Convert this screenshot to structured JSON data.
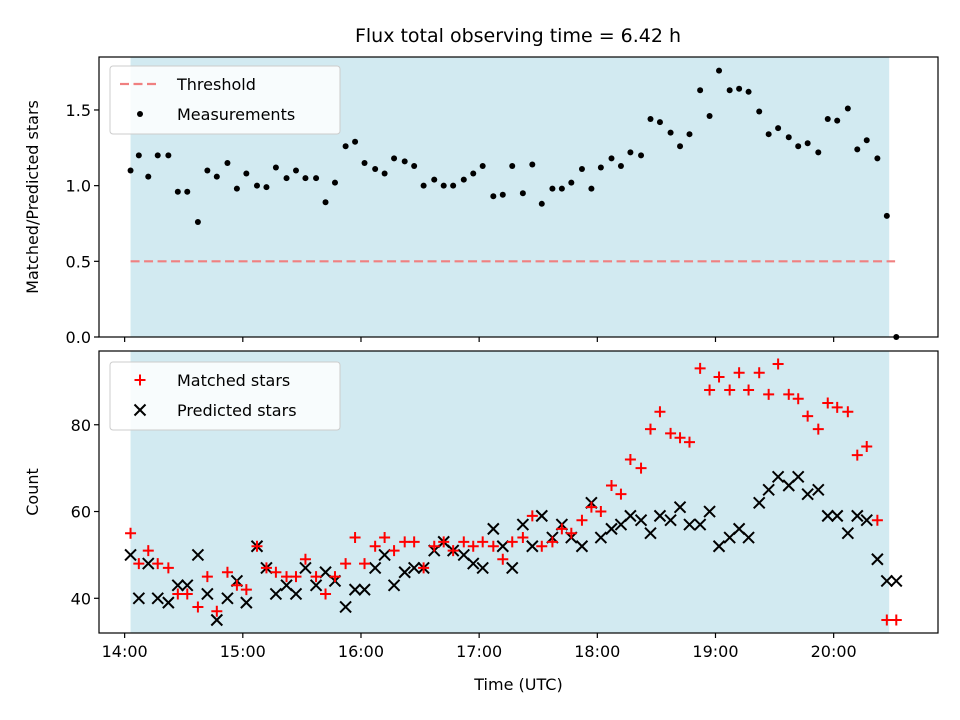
{
  "title": "Flux total observing time = 6.42 h",
  "chart_data": [
    {
      "type": "scatter",
      "ylabel": "Matched/Predicted stars",
      "xlim": [
        13.783,
        20.883
      ],
      "ylim": [
        0,
        1.85
      ],
      "yticks": [
        0.0,
        0.5,
        1.0,
        1.5
      ],
      "ytick_labels": [
        "0.0",
        "0.5",
        "1.0",
        "1.5"
      ],
      "observing_window": [
        14.05,
        20.47
      ],
      "threshold": {
        "name": "Threshold",
        "value": 0.5,
        "color": "#f08080",
        "style": "dashed",
        "x_range": [
          14.05,
          20.52
        ]
      },
      "series": [
        {
          "name": "Measurements",
          "marker": "dot",
          "color": "#000000",
          "x": [
            14.05,
            14.12,
            14.2,
            14.28,
            14.37,
            14.45,
            14.53,
            14.62,
            14.7,
            14.78,
            14.87,
            14.95,
            15.03,
            15.12,
            15.2,
            15.28,
            15.37,
            15.45,
            15.53,
            15.62,
            15.7,
            15.78,
            15.87,
            15.95,
            16.03,
            16.12,
            16.2,
            16.28,
            16.37,
            16.45,
            16.53,
            16.62,
            16.7,
            16.78,
            16.87,
            16.95,
            17.03,
            17.12,
            17.2,
            17.28,
            17.37,
            17.45,
            17.53,
            17.62,
            17.7,
            17.78,
            17.87,
            17.95,
            18.03,
            18.12,
            18.2,
            18.28,
            18.37,
            18.45,
            18.53,
            18.62,
            18.7,
            18.78,
            18.87,
            18.95,
            19.03,
            19.12,
            19.2,
            19.28,
            19.37,
            19.45,
            19.53,
            19.62,
            19.7,
            19.78,
            19.87,
            19.95,
            20.03,
            20.12,
            20.2,
            20.28,
            20.37,
            20.45,
            20.53
          ],
          "y": [
            1.1,
            1.2,
            1.06,
            1.2,
            1.2,
            0.96,
            0.96,
            0.76,
            1.1,
            1.06,
            1.15,
            0.98,
            1.08,
            1.0,
            0.99,
            1.12,
            1.05,
            1.1,
            1.05,
            1.05,
            0.89,
            1.02,
            1.26,
            1.29,
            1.15,
            1.11,
            1.08,
            1.18,
            1.16,
            1.13,
            1.0,
            1.04,
            1.0,
            1.0,
            1.04,
            1.08,
            1.13,
            0.93,
            0.94,
            1.13,
            0.95,
            1.14,
            0.88,
            0.98,
            0.98,
            1.02,
            1.11,
            0.98,
            1.12,
            1.18,
            1.13,
            1.22,
            1.2,
            1.44,
            1.42,
            1.35,
            1.26,
            1.34,
            1.63,
            1.46,
            1.76,
            1.63,
            1.64,
            1.62,
            1.49,
            1.34,
            1.38,
            1.32,
            1.26,
            1.28,
            1.22,
            1.44,
            1.43,
            1.51,
            1.24,
            1.3,
            1.18,
            0.8,
            0.0
          ]
        }
      ]
    },
    {
      "type": "scatter",
      "xlabel": "Time (UTC)",
      "ylabel": "Count",
      "xlim": [
        13.783,
        20.883
      ],
      "ylim": [
        32,
        97
      ],
      "xticks": [
        14,
        15,
        16,
        17,
        18,
        19,
        20
      ],
      "xtick_labels": [
        "14:00",
        "15:00",
        "16:00",
        "17:00",
        "18:00",
        "19:00",
        "20:00"
      ],
      "yticks": [
        40,
        60,
        80
      ],
      "ytick_labels": [
        "40",
        "60",
        "80"
      ],
      "observing_window": [
        14.05,
        20.47
      ],
      "series": [
        {
          "name": "Matched stars",
          "marker": "plus",
          "color": "#ff0000",
          "x": [
            14.05,
            14.12,
            14.2,
            14.28,
            14.37,
            14.45,
            14.53,
            14.62,
            14.7,
            14.78,
            14.87,
            14.95,
            15.03,
            15.12,
            15.2,
            15.28,
            15.37,
            15.45,
            15.53,
            15.62,
            15.7,
            15.78,
            15.87,
            15.95,
            16.03,
            16.12,
            16.2,
            16.28,
            16.37,
            16.45,
            16.53,
            16.62,
            16.7,
            16.78,
            16.87,
            16.95,
            17.03,
            17.12,
            17.2,
            17.28,
            17.37,
            17.45,
            17.53,
            17.62,
            17.7,
            17.78,
            17.87,
            17.95,
            18.03,
            18.12,
            18.2,
            18.28,
            18.37,
            18.45,
            18.53,
            18.62,
            18.7,
            18.78,
            18.87,
            18.95,
            19.03,
            19.12,
            19.2,
            19.28,
            19.37,
            19.45,
            19.53,
            19.62,
            19.7,
            19.78,
            19.87,
            19.95,
            20.03,
            20.12,
            20.2,
            20.28,
            20.37,
            20.45,
            20.53
          ],
          "y": [
            55,
            48,
            51,
            48,
            47,
            41,
            41,
            38,
            45,
            37,
            46,
            43,
            42,
            52,
            47,
            46,
            45,
            45,
            49,
            45,
            41,
            45,
            48,
            54,
            48,
            52,
            54,
            51,
            53,
            53,
            47,
            52,
            53,
            51,
            53,
            52,
            53,
            52,
            49,
            53,
            54,
            59,
            52,
            53,
            56,
            55,
            58,
            61,
            60,
            66,
            64,
            72,
            70,
            79,
            83,
            78,
            77,
            76,
            93,
            88,
            91,
            88,
            92,
            88,
            92,
            87,
            94,
            87,
            86,
            82,
            79,
            85,
            84,
            83,
            73,
            75,
            58,
            35,
            35
          ]
        },
        {
          "name": "Predicted stars",
          "marker": "x",
          "color": "#000000",
          "x": [
            14.05,
            14.12,
            14.2,
            14.28,
            14.37,
            14.45,
            14.53,
            14.62,
            14.7,
            14.78,
            14.87,
            14.95,
            15.03,
            15.12,
            15.2,
            15.28,
            15.37,
            15.45,
            15.53,
            15.62,
            15.7,
            15.78,
            15.87,
            15.95,
            16.03,
            16.12,
            16.2,
            16.28,
            16.37,
            16.45,
            16.53,
            16.62,
            16.7,
            16.78,
            16.87,
            16.95,
            17.03,
            17.12,
            17.2,
            17.28,
            17.37,
            17.45,
            17.53,
            17.62,
            17.7,
            17.78,
            17.87,
            17.95,
            18.03,
            18.12,
            18.2,
            18.28,
            18.37,
            18.45,
            18.53,
            18.62,
            18.7,
            18.78,
            18.87,
            18.95,
            19.03,
            19.12,
            19.2,
            19.28,
            19.37,
            19.45,
            19.53,
            19.62,
            19.7,
            19.78,
            19.87,
            19.95,
            20.03,
            20.12,
            20.2,
            20.28,
            20.37,
            20.45,
            20.53
          ],
          "y": [
            50,
            40,
            48,
            40,
            39,
            43,
            43,
            50,
            41,
            35,
            40,
            44,
            39,
            52,
            47,
            41,
            43,
            41,
            47,
            43,
            46,
            44,
            38,
            42,
            42,
            47,
            50,
            43,
            46,
            47,
            47,
            51,
            53,
            51,
            50,
            48,
            47,
            56,
            52,
            47,
            57,
            52,
            59,
            54,
            57,
            54,
            52,
            62,
            54,
            56,
            57,
            59,
            58,
            55,
            59,
            58,
            61,
            57,
            57,
            60,
            52,
            54,
            56,
            54,
            62,
            65,
            68,
            66,
            68,
            64,
            65,
            59,
            59,
            55,
            59,
            58,
            49,
            44,
            44
          ]
        }
      ],
      "legend": [
        {
          "name": "Matched stars",
          "marker": "plus",
          "color": "#ff0000"
        },
        {
          "name": "Predicted stars",
          "marker": "x",
          "color": "#000000"
        }
      ]
    }
  ],
  "legend_top": [
    {
      "name": "Threshold",
      "marker": "dashed-line",
      "color": "#f08080"
    },
    {
      "name": "Measurements",
      "marker": "dot",
      "color": "#000000"
    }
  ],
  "colors": {
    "window_fill": "#add8e6",
    "axes_edge": "#000000",
    "legend_edge": "#cccccc"
  }
}
